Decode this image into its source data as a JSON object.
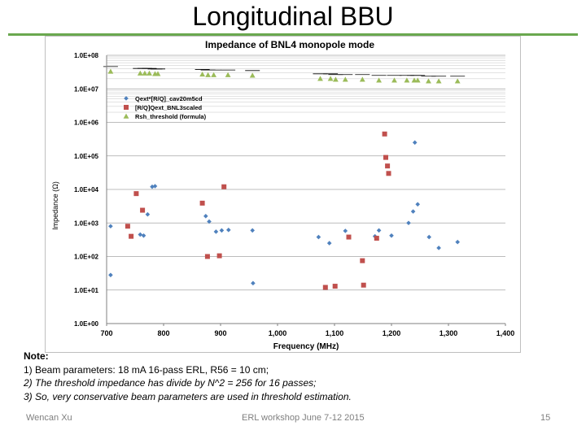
{
  "slide": {
    "title": "Longitudinal BBU",
    "accent_color": "#6aa84f",
    "notes": {
      "title": "Note:",
      "lines": [
        "1)  Beam parameters: 18 mA 16-pass ERL, R56 = 10 cm;",
        "2) The threshold impedance has divide by N^2 = 256 for 16 passes;",
        "3) So, very conservative beam parameters are used in threshold estimation."
      ]
    },
    "footer": {
      "author": "Wencan Xu",
      "event": "ERL workshop June 7-12 2015",
      "page": "15"
    }
  },
  "chart_data": {
    "type": "scatter",
    "title": "Impedance of BNL4 monopole mode",
    "xlabel": "Frequency (MHz)",
    "ylabel": "Impedance (Ω)",
    "x_ticks": [
      "700",
      "800",
      "900",
      "1,000",
      "1,100",
      "1,200",
      "1,300",
      "1,400"
    ],
    "y_ticks": [
      "1.0E+00",
      "1.0E+01",
      "1.0E+02",
      "1.0E+03",
      "1.0E+04",
      "1.0E+05",
      "1.0E+06",
      "1.0E+07",
      "1.0E+08"
    ],
    "xlim": [
      700,
      1400
    ],
    "ylim": [
      1,
      100000000
    ],
    "y_scale": "log",
    "grid": "horizontal",
    "legend_position": "upper-left",
    "series": [
      {
        "name": "Qext*[R/Q]_cav20m5cd",
        "marker": "diamond",
        "color": "#4f81bd",
        "points": [
          [
            707,
            800
          ],
          [
            707,
            28
          ],
          [
            759,
            450
          ],
          [
            765,
            420
          ],
          [
            772,
            1800
          ],
          [
            780,
            12000
          ],
          [
            785,
            12500
          ],
          [
            874,
            1600
          ],
          [
            880,
            1100
          ],
          [
            892,
            550
          ],
          [
            902,
            600
          ],
          [
            914,
            620
          ],
          [
            956,
            600
          ],
          [
            957,
            16
          ],
          [
            1072,
            380
          ],
          [
            1091,
            250
          ],
          [
            1119,
            580
          ],
          [
            1171,
            400
          ],
          [
            1178,
            600
          ],
          [
            1200,
            420
          ],
          [
            1230,
            1000
          ],
          [
            1238,
            2200
          ],
          [
            1241,
            250000
          ],
          [
            1246,
            3600
          ],
          [
            1266,
            380
          ],
          [
            1283,
            180
          ],
          [
            1316,
            270
          ]
        ]
      },
      {
        "name": "[R/Q]Qext_BNL3scaled",
        "marker": "square",
        "color": "#c0504d",
        "points": [
          [
            737,
            800
          ],
          [
            743,
            400
          ],
          [
            752,
            7500
          ],
          [
            763,
            2400
          ],
          [
            868,
            3900
          ],
          [
            906,
            12000
          ],
          [
            877,
            100
          ],
          [
            898,
            105
          ],
          [
            1084,
            12
          ],
          [
            1101,
            13
          ],
          [
            1125,
            380
          ],
          [
            1149,
            75
          ],
          [
            1151,
            14
          ],
          [
            1174,
            350
          ],
          [
            1188,
            450000
          ],
          [
            1190,
            90000
          ],
          [
            1193,
            50000
          ],
          [
            1195,
            30000
          ]
        ]
      },
      {
        "name": "Rsh_threshold (formula)",
        "marker": "triangle",
        "color": "#9bbb59",
        "points": [
          [
            707,
            33000000
          ],
          [
            759,
            29000000
          ],
          [
            767,
            29000000
          ],
          [
            775,
            29000000
          ],
          [
            785,
            28000000
          ],
          [
            790,
            28000000
          ],
          [
            868,
            27000000
          ],
          [
            878,
            26000000
          ],
          [
            888,
            26000000
          ],
          [
            913,
            26000000
          ],
          [
            956,
            25000000
          ],
          [
            1075,
            20000000
          ],
          [
            1093,
            20000000
          ],
          [
            1102,
            19000000
          ],
          [
            1119,
            19000000
          ],
          [
            1149,
            19000000
          ],
          [
            1178,
            18000000
          ],
          [
            1205,
            18000000
          ],
          [
            1227,
            18000000
          ],
          [
            1240,
            18000000
          ],
          [
            1246,
            18000000
          ],
          [
            1265,
            17000000
          ],
          [
            1283,
            17000000
          ],
          [
            1316,
            17000000
          ]
        ]
      }
    ]
  }
}
